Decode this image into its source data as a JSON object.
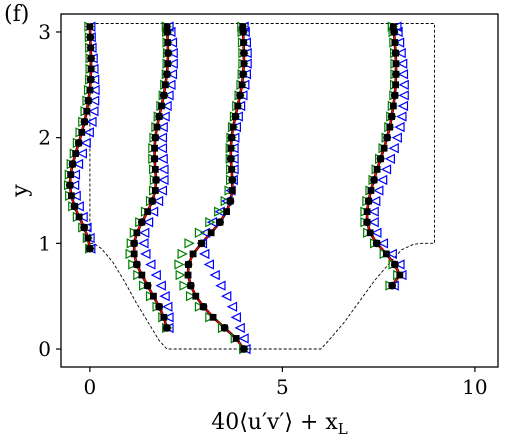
{
  "panel_label": "(f)",
  "chart_data": {
    "type": "line",
    "xlabel": "40⟨u′v′⟩ + x",
    "xlabel_sub": "L",
    "ylabel": "y",
    "xlim": [
      -0.75,
      10.6
    ],
    "ylim": [
      -0.17,
      3.17
    ],
    "xticks": [
      0,
      5,
      10
    ],
    "xtick_labels": [
      "0",
      "5",
      "10"
    ],
    "yticks": [
      0,
      1,
      2,
      3
    ],
    "ytick_labels": [
      "0",
      "1",
      "2",
      "3"
    ],
    "grid": false,
    "colors": {
      "line": "#ff0000",
      "line_dark": "#000000",
      "circle": "#000000",
      "square": "#000000",
      "tri_left": "#0000ff",
      "tri_right": "#008000",
      "wall": "#000000"
    },
    "wall": {
      "style": "dashed",
      "x": [
        0,
        0,
        0.1,
        0.3,
        0.6,
        0.9,
        1.2,
        1.6,
        1.8,
        2.0,
        6.0,
        6.2,
        6.6,
        7.0,
        7.4,
        7.8,
        8.1,
        8.4,
        8.6,
        8.8,
        8.95,
        8.95,
        0
      ],
      "y": [
        3.08,
        1.0,
        1.0,
        0.95,
        0.82,
        0.64,
        0.44,
        0.2,
        0.08,
        0.0,
        0.0,
        0.08,
        0.25,
        0.45,
        0.65,
        0.82,
        0.94,
        0.99,
        1.0,
        1.0,
        1.0,
        3.08,
        3.08
      ]
    },
    "profiles": [
      {
        "x_location": 0,
        "y": [
          0.95,
          1.05,
          1.15,
          1.25,
          1.35,
          1.45,
          1.55,
          1.65,
          1.75,
          1.85,
          1.95,
          2.05,
          2.15,
          2.25,
          2.35,
          2.45,
          2.55,
          2.65,
          2.75,
          2.85,
          2.95,
          3.05
        ],
        "line": [
          0.0,
          -0.05,
          -0.15,
          -0.28,
          -0.4,
          -0.48,
          -0.52,
          -0.5,
          -0.45,
          -0.37,
          -0.29,
          -0.21,
          -0.14,
          -0.08,
          -0.04,
          0.0,
          0.02,
          0.03,
          0.03,
          0.02,
          0.01,
          0.0
        ],
        "circles": [
          0.0,
          -0.05,
          -0.15,
          -0.28,
          -0.4,
          -0.48,
          -0.52,
          -0.5,
          -0.45,
          -0.37,
          -0.29,
          -0.21,
          -0.14,
          -0.08,
          -0.04,
          0.0,
          0.02,
          0.03,
          0.03,
          0.02,
          0.01,
          0.0
        ],
        "squares": [
          0.0,
          -0.05,
          -0.15,
          -0.28,
          -0.4,
          -0.48,
          -0.52,
          -0.5,
          -0.45,
          -0.37,
          -0.29,
          -0.21,
          -0.14,
          -0.08,
          -0.04,
          0.0,
          0.02,
          0.03,
          0.03,
          0.02,
          0.01,
          0.0
        ],
        "tri_left": [
          0.02,
          0.0,
          -0.08,
          -0.18,
          -0.28,
          -0.36,
          -0.4,
          -0.38,
          -0.3,
          -0.2,
          -0.1,
          -0.02,
          0.05,
          0.1,
          0.12,
          0.13,
          0.12,
          0.1,
          0.08,
          0.05,
          0.03,
          0.02
        ],
        "tri_right": [
          0.0,
          -0.06,
          -0.18,
          -0.32,
          -0.44,
          -0.52,
          -0.55,
          -0.53,
          -0.48,
          -0.4,
          -0.32,
          -0.25,
          -0.18,
          -0.12,
          -0.07,
          -0.03,
          0.0,
          0.01,
          0.01,
          0.0,
          -0.01,
          -0.02
        ]
      },
      {
        "x_location": 2,
        "y": [
          0.2,
          0.3,
          0.4,
          0.5,
          0.6,
          0.7,
          0.8,
          0.9,
          1.0,
          1.1,
          1.2,
          1.3,
          1.4,
          1.5,
          1.6,
          1.7,
          1.8,
          1.9,
          2.0,
          2.1,
          2.2,
          2.3,
          2.4,
          2.5,
          2.6,
          2.7,
          2.8,
          2.9,
          3.0,
          3.05
        ],
        "line": [
          2.0,
          1.92,
          1.8,
          1.65,
          1.5,
          1.35,
          1.22,
          1.15,
          1.15,
          1.22,
          1.35,
          1.5,
          1.62,
          1.7,
          1.72,
          1.7,
          1.68,
          1.68,
          1.7,
          1.74,
          1.8,
          1.86,
          1.92,
          1.96,
          2.0,
          2.02,
          2.03,
          2.02,
          2.01,
          2.0
        ],
        "circles": [
          2.0,
          1.92,
          1.8,
          1.65,
          1.5,
          1.35,
          1.22,
          1.15,
          1.15,
          1.22,
          1.35,
          1.5,
          1.62,
          1.7,
          1.72,
          1.7,
          1.68,
          1.68,
          1.7,
          1.74,
          1.8,
          1.86,
          1.92,
          1.96,
          2.0,
          2.02,
          2.03,
          2.02,
          2.01,
          2.0
        ],
        "squares": [
          2.0,
          1.92,
          1.8,
          1.65,
          1.5,
          1.35,
          1.22,
          1.15,
          1.15,
          1.22,
          1.35,
          1.5,
          1.62,
          1.7,
          1.72,
          1.7,
          1.68,
          1.68,
          1.7,
          1.74,
          1.8,
          1.86,
          1.92,
          1.96,
          2.0,
          2.02,
          2.03,
          2.02,
          2.01,
          2.0
        ],
        "tri_left": [
          2.05,
          2.05,
          2.02,
          1.95,
          1.85,
          1.72,
          1.58,
          1.45,
          1.4,
          1.42,
          1.52,
          1.65,
          1.78,
          1.88,
          1.92,
          1.92,
          1.9,
          1.88,
          1.88,
          1.9,
          1.95,
          2.0,
          2.05,
          2.1,
          2.14,
          2.16,
          2.16,
          2.14,
          2.1,
          2.05
        ],
        "tri_right": [
          2.0,
          1.9,
          1.75,
          1.58,
          1.4,
          1.25,
          1.12,
          1.05,
          1.08,
          1.16,
          1.3,
          1.45,
          1.58,
          1.66,
          1.68,
          1.66,
          1.64,
          1.64,
          1.67,
          1.72,
          1.78,
          1.85,
          1.91,
          1.95,
          1.99,
          2.01,
          2.02,
          2.01,
          2.0,
          1.99
        ]
      },
      {
        "x_location": 4,
        "y": [
          0.0,
          0.1,
          0.2,
          0.3,
          0.4,
          0.5,
          0.6,
          0.7,
          0.8,
          0.9,
          1.0,
          1.1,
          1.2,
          1.3,
          1.4,
          1.5,
          1.6,
          1.7,
          1.8,
          1.9,
          2.0,
          2.1,
          2.2,
          2.3,
          2.4,
          2.5,
          2.6,
          2.7,
          2.8,
          2.9,
          3.0,
          3.05
        ],
        "line": [
          4.0,
          3.8,
          3.5,
          3.2,
          2.95,
          2.75,
          2.62,
          2.55,
          2.56,
          2.68,
          2.9,
          3.15,
          3.38,
          3.55,
          3.65,
          3.7,
          3.7,
          3.68,
          3.66,
          3.66,
          3.68,
          3.72,
          3.78,
          3.84,
          3.9,
          3.95,
          3.98,
          4.0,
          4.0,
          3.99,
          3.98,
          3.97
        ],
        "circles": [
          4.0,
          3.8,
          3.5,
          3.2,
          2.95,
          2.75,
          2.62,
          2.55,
          2.56,
          2.68,
          2.9,
          3.15,
          3.38,
          3.55,
          3.65,
          3.7,
          3.7,
          3.68,
          3.66,
          3.66,
          3.68,
          3.72,
          3.78,
          3.84,
          3.9,
          3.95,
          3.98,
          4.0,
          4.0,
          3.99,
          3.98,
          3.97
        ],
        "squares": [
          4.0,
          3.8,
          3.5,
          3.2,
          2.95,
          2.75,
          2.62,
          2.55,
          2.56,
          2.68,
          2.9,
          3.15,
          3.38,
          3.55,
          3.65,
          3.7,
          3.7,
          3.68,
          3.66,
          3.66,
          3.68,
          3.72,
          3.78,
          3.84,
          3.9,
          3.95,
          3.98,
          4.0,
          4.0,
          3.99,
          3.98,
          3.97
        ],
        "tri_left": [
          4.05,
          4.0,
          3.9,
          3.8,
          3.7,
          3.55,
          3.4,
          3.25,
          3.1,
          2.98,
          2.92,
          3.0,
          3.18,
          3.38,
          3.55,
          3.66,
          3.72,
          3.74,
          3.74,
          3.74,
          3.76,
          3.8,
          3.85,
          3.91,
          3.97,
          4.02,
          4.06,
          4.08,
          4.08,
          4.06,
          4.03,
          4.0
        ],
        "tri_right": [
          4.0,
          3.78,
          3.45,
          3.12,
          2.85,
          2.62,
          2.45,
          2.35,
          2.32,
          2.4,
          2.58,
          2.85,
          3.12,
          3.35,
          3.52,
          3.62,
          3.66,
          3.66,
          3.65,
          3.65,
          3.67,
          3.71,
          3.76,
          3.82,
          3.88,
          3.93,
          3.96,
          3.98,
          3.98,
          3.97,
          3.96,
          3.95
        ]
      },
      {
        "x_location": 8,
        "y": [
          0.6,
          0.7,
          0.8,
          0.9,
          1.0,
          1.1,
          1.2,
          1.3,
          1.4,
          1.5,
          1.6,
          1.7,
          1.8,
          1.9,
          2.0,
          2.1,
          2.2,
          2.3,
          2.4,
          2.5,
          2.6,
          2.7,
          2.8,
          2.9,
          3.0,
          3.05
        ],
        "line": [
          7.85,
          8.05,
          7.92,
          7.7,
          7.45,
          7.28,
          7.2,
          7.2,
          7.24,
          7.3,
          7.38,
          7.46,
          7.55,
          7.64,
          7.72,
          7.79,
          7.84,
          7.88,
          7.92,
          7.94,
          7.95,
          7.95,
          7.94,
          7.92,
          7.9,
          7.88
        ],
        "circles": [
          7.85,
          8.05,
          7.92,
          7.7,
          7.45,
          7.28,
          7.2,
          7.2,
          7.24,
          7.3,
          7.38,
          7.46,
          7.55,
          7.64,
          7.72,
          7.79,
          7.84,
          7.88,
          7.92,
          7.94,
          7.95,
          7.95,
          7.94,
          7.92,
          7.9,
          7.88
        ],
        "squares": [
          7.85,
          8.05,
          7.92,
          7.7,
          7.45,
          7.28,
          7.2,
          7.2,
          7.24,
          7.3,
          7.38,
          7.46,
          7.55,
          7.64,
          7.72,
          7.79,
          7.84,
          7.88,
          7.92,
          7.94,
          7.95,
          7.95,
          7.94,
          7.92,
          7.9,
          7.88
        ],
        "tri_left": [
          7.9,
          8.1,
          8.05,
          7.85,
          7.62,
          7.45,
          7.38,
          7.38,
          7.42,
          7.5,
          7.6,
          7.7,
          7.8,
          7.9,
          7.98,
          8.05,
          8.1,
          8.14,
          8.16,
          8.16,
          8.14,
          8.12,
          8.08,
          8.04,
          8.0,
          7.97
        ],
        "tri_right": [
          7.8,
          8.0,
          7.88,
          7.65,
          7.4,
          7.22,
          7.15,
          7.15,
          7.2,
          7.28,
          7.36,
          7.44,
          7.53,
          7.62,
          7.7,
          7.77,
          7.82,
          7.86,
          7.9,
          7.92,
          7.93,
          7.93,
          7.92,
          7.9,
          7.88,
          7.86
        ]
      }
    ]
  }
}
